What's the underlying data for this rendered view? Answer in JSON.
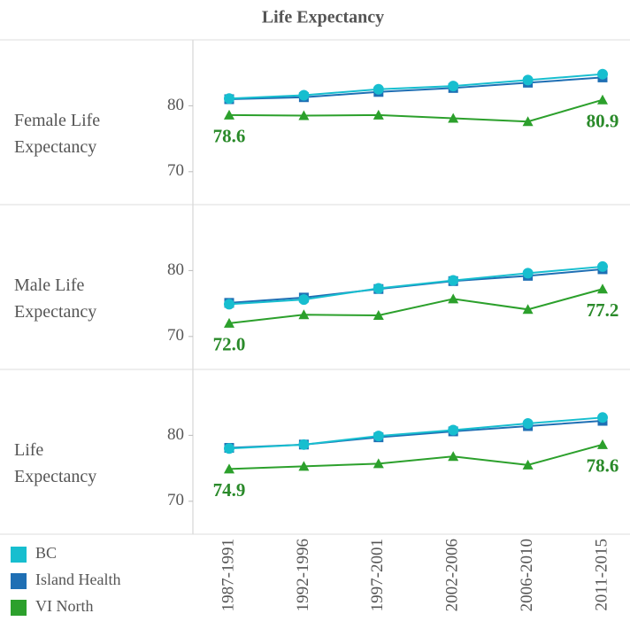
{
  "chart_data": {
    "type": "line",
    "title": "Life Expectancy",
    "categories": [
      "1987-1991",
      "1992-1996",
      "1997-2001",
      "2002-2006",
      "2006-2010",
      "2011-2015"
    ],
    "series": [
      {
        "name": "BC",
        "color": "#17becf",
        "marker": "circle"
      },
      {
        "name": "Island Health",
        "color": "#1f6fb4",
        "marker": "square"
      },
      {
        "name": "VI North",
        "color": "#2ca02c",
        "marker": "triangle"
      }
    ],
    "panels": [
      {
        "label": "Female Life Expectancy",
        "ylim": [
          65,
          90
        ],
        "yticks": [
          70,
          80
        ],
        "values": [
          [
            81.1,
            81.6,
            82.5,
            83.0,
            83.9,
            84.8
          ],
          [
            81.0,
            81.3,
            82.1,
            82.7,
            83.5,
            84.3
          ],
          [
            78.6,
            78.5,
            78.6,
            78.1,
            77.6,
            80.9
          ]
        ],
        "value_labels": [
          null,
          null,
          [
            "78.6",
            null,
            null,
            null,
            null,
            "80.9"
          ]
        ]
      },
      {
        "label": "Male Life Expectancy",
        "ylim": [
          65,
          90
        ],
        "yticks": [
          70,
          80
        ],
        "values": [
          [
            74.9,
            75.6,
            77.3,
            78.5,
            79.6,
            80.6
          ],
          [
            75.1,
            75.9,
            77.2,
            78.4,
            79.2,
            80.2
          ],
          [
            72.0,
            73.3,
            73.2,
            75.7,
            74.1,
            77.2
          ]
        ],
        "value_labels": [
          null,
          null,
          [
            "72.0",
            null,
            null,
            null,
            null,
            "77.2"
          ]
        ]
      },
      {
        "label": "Life Expectancy",
        "ylim": [
          65,
          90
        ],
        "yticks": [
          70,
          80
        ],
        "values": [
          [
            78.0,
            78.6,
            79.9,
            80.8,
            81.8,
            82.7
          ],
          [
            78.1,
            78.6,
            79.7,
            80.6,
            81.4,
            82.2
          ],
          [
            74.9,
            75.3,
            75.7,
            76.8,
            75.5,
            78.6
          ]
        ],
        "value_labels": [
          null,
          null,
          [
            "74.9",
            null,
            null,
            null,
            null,
            "78.6"
          ]
        ]
      }
    ]
  }
}
